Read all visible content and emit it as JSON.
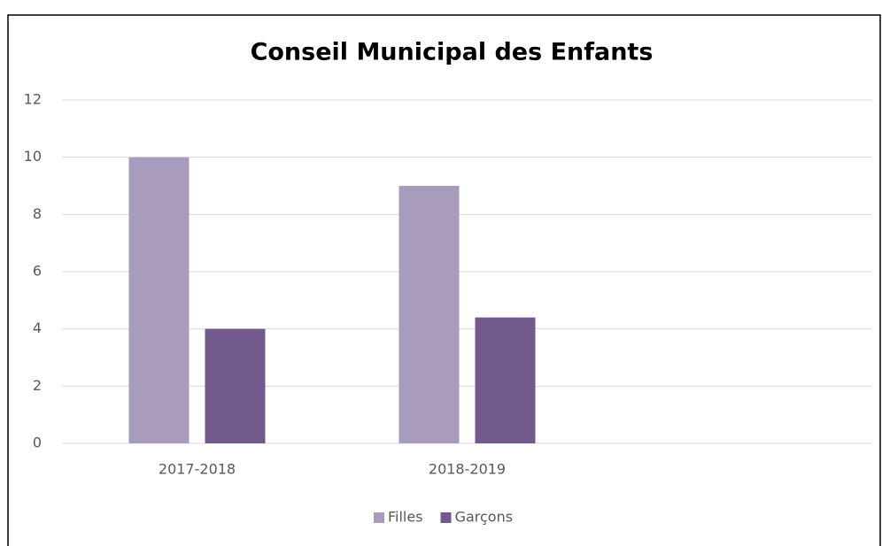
{
  "chart_data": {
    "type": "bar",
    "title": "Conseil Municipal des Enfants",
    "categories": [
      "2017-2018",
      "2018-2019",
      null
    ],
    "series": [
      {
        "name": "Filles",
        "color": "#a99bbd",
        "values": [
          10,
          9,
          null
        ]
      },
      {
        "name": "Garçons",
        "color": "#725a8f",
        "values": [
          4,
          4.4,
          null
        ]
      }
    ],
    "ylim": [
      0,
      12
    ],
    "yticks": [
      0,
      2,
      4,
      6,
      8,
      10,
      12
    ],
    "grid": true,
    "legend": "bottom"
  }
}
